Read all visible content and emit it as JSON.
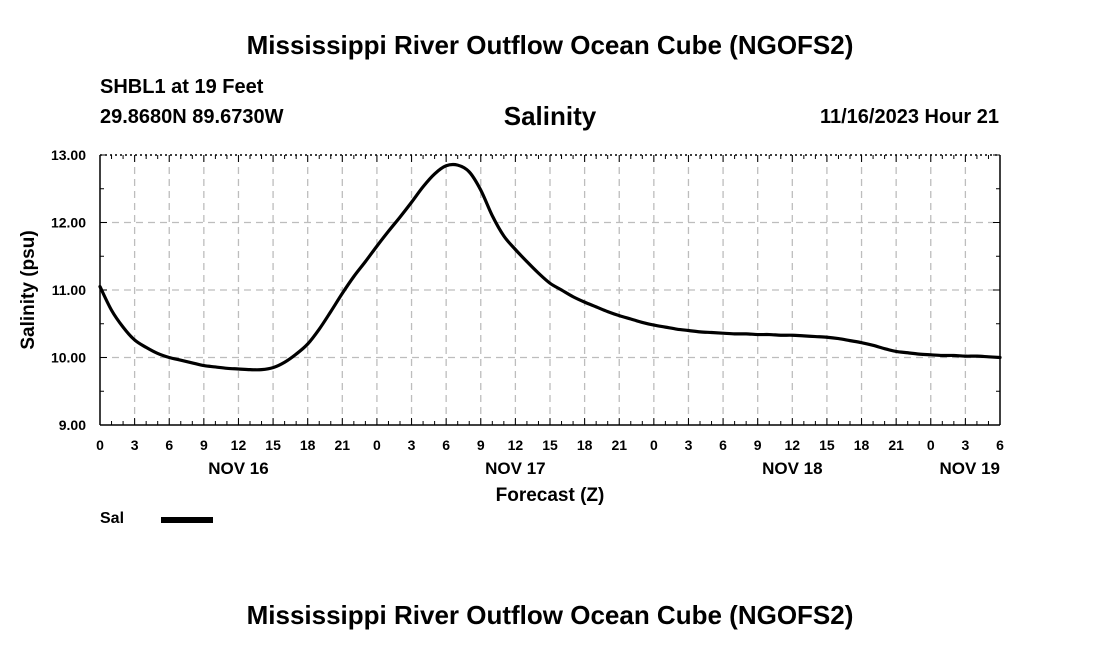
{
  "header": {
    "title": "Mississippi River Outflow Ocean Cube (NGOFS2)",
    "station": "SHBL1 at 19 Feet",
    "coords": "29.8680N  89.6730W",
    "datetime": "11/16/2023 Hour 21"
  },
  "footer": {
    "title": "Mississippi River Outflow Ocean Cube (NGOFS2)"
  },
  "chart_data": {
    "type": "line",
    "title": "Salinity",
    "xlabel": "Forecast (Z)",
    "ylabel": "Salinity (psu)",
    "xlim": [
      0,
      78
    ],
    "ylim": [
      9.0,
      13.0
    ],
    "grid": true,
    "x_ticks": [
      0,
      3,
      6,
      9,
      12,
      15,
      18,
      21,
      24,
      27,
      30,
      33,
      36,
      39,
      42,
      45,
      48,
      51,
      54,
      57,
      60,
      63,
      66,
      69,
      72,
      75,
      78
    ],
    "x_tick_labels": [
      "0",
      "3",
      "6",
      "9",
      "12",
      "15",
      "18",
      "21",
      "0",
      "3",
      "6",
      "9",
      "12",
      "15",
      "18",
      "21",
      "0",
      "3",
      "6",
      "9",
      "12",
      "15",
      "18",
      "21",
      "0",
      "3",
      "6"
    ],
    "y_ticks": [
      9.0,
      10.0,
      11.0,
      12.0,
      13.0
    ],
    "y_tick_labels": [
      "9.00",
      "10.00",
      "11.00",
      "12.00",
      "13.00"
    ],
    "date_labels": [
      {
        "x": 12,
        "label": "NOV 16"
      },
      {
        "x": 36,
        "label": "NOV 17"
      },
      {
        "x": 60,
        "label": "NOV 18"
      },
      {
        "x": 78,
        "label": "NOV 19"
      }
    ],
    "series": [
      {
        "name": "Sal",
        "color": "#000000",
        "x": [
          0,
          1,
          2,
          3,
          4,
          5,
          6,
          7,
          8,
          9,
          10,
          11,
          12,
          13,
          14,
          15,
          16,
          17,
          18,
          19,
          20,
          21,
          22,
          23,
          24,
          25,
          26,
          27,
          28,
          29,
          30,
          31,
          32,
          33,
          34,
          35,
          36,
          37,
          38,
          39,
          40,
          41,
          42,
          43,
          44,
          45,
          46,
          47,
          48,
          49,
          50,
          51,
          52,
          53,
          54,
          55,
          56,
          57,
          58,
          59,
          60,
          61,
          62,
          63,
          64,
          65,
          66,
          67,
          68,
          69,
          70,
          71,
          72,
          73,
          74,
          75,
          76,
          77,
          78
        ],
        "values": [
          11.05,
          10.7,
          10.45,
          10.26,
          10.15,
          10.06,
          10.0,
          9.96,
          9.92,
          9.88,
          9.86,
          9.84,
          9.83,
          9.82,
          9.82,
          9.85,
          9.93,
          10.05,
          10.2,
          10.42,
          10.68,
          10.95,
          11.2,
          11.42,
          11.65,
          11.87,
          12.08,
          12.3,
          12.53,
          12.72,
          12.84,
          12.85,
          12.75,
          12.48,
          12.1,
          11.8,
          11.6,
          11.42,
          11.25,
          11.1,
          11.0,
          10.9,
          10.82,
          10.75,
          10.68,
          10.62,
          10.57,
          10.52,
          10.48,
          10.45,
          10.42,
          10.4,
          10.38,
          10.37,
          10.36,
          10.35,
          10.35,
          10.34,
          10.34,
          10.33,
          10.33,
          10.32,
          10.31,
          10.3,
          10.28,
          10.25,
          10.22,
          10.18,
          10.13,
          10.09,
          10.07,
          10.05,
          10.04,
          10.03,
          10.03,
          10.02,
          10.02,
          10.01,
          10.0
        ]
      }
    ]
  }
}
